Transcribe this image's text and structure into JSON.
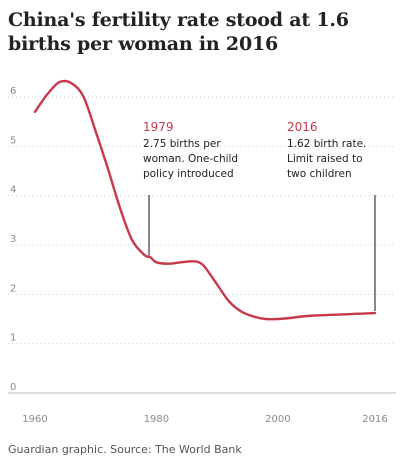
{
  "chart_data": {
    "type": "line",
    "title": "China's fertility rate stood at 1.6 births per woman in 2016",
    "xlabel": "",
    "ylabel": "",
    "xlim": [
      1960,
      2016
    ],
    "ylim": [
      0,
      6
    ],
    "x_ticks": [
      1960,
      1980,
      2000,
      2016
    ],
    "y_ticks": [
      0,
      1,
      2,
      3,
      4,
      5,
      6
    ],
    "grid": true,
    "series": [
      {
        "color": "#c7394a",
        "x": [
          1960,
          1962,
          1964,
          1966,
          1968,
          1970,
          1972,
          1974,
          1976,
          1978,
          1979,
          1980,
          1982,
          1984,
          1986,
          1987,
          1988,
          1990,
          1992,
          1994,
          1996,
          1998,
          2000,
          2002,
          2004,
          2006,
          2008,
          2010,
          2012,
          2014,
          2016
        ],
        "y": [
          5.7,
          6.05,
          6.3,
          6.28,
          6.0,
          5.3,
          4.55,
          3.75,
          3.1,
          2.8,
          2.75,
          2.65,
          2.62,
          2.65,
          2.67,
          2.65,
          2.55,
          2.2,
          1.85,
          1.65,
          1.55,
          1.5,
          1.5,
          1.52,
          1.55,
          1.57,
          1.58,
          1.59,
          1.6,
          1.61,
          1.62
        ]
      }
    ],
    "annotations": [
      {
        "year": "1979",
        "lines": [
          "2.75 births per",
          "woman. One-child",
          "policy introduced"
        ],
        "x": 1979,
        "y": 2.75
      },
      {
        "year": "2016",
        "lines": [
          "1.62 birth rate.",
          "Limit raised to",
          "two children"
        ],
        "x": 2016,
        "y": 1.62
      }
    ]
  },
  "source": "Guardian graphic. Source: The World Bank"
}
